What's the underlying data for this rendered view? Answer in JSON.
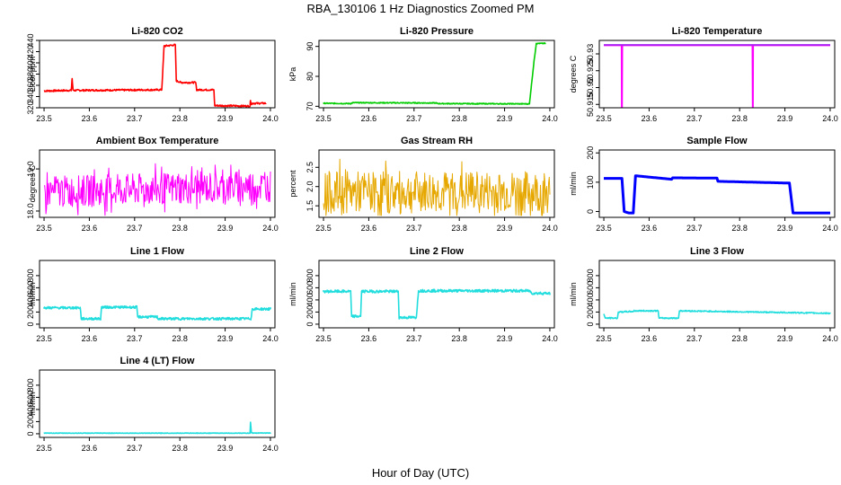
{
  "figure": {
    "title": "RBA_130106  1 Hz Diagnostics Zoomed PM",
    "xlabel": "Hour of Day (UTC)"
  },
  "chart_data": [
    {
      "type": "line",
      "title": "Li-820 CO2",
      "ylabel": "Licor ppm",
      "xlim": [
        23.49,
        24.01
      ],
      "ylim": [
        320,
        440
      ],
      "yticks": [
        320,
        340,
        360,
        380,
        400,
        420,
        440
      ],
      "xticks": [
        23.5,
        23.6,
        23.7,
        23.8,
        23.9,
        24.0
      ],
      "series": [
        {
          "color": "#ff0000",
          "style": "noisy",
          "noise": 1.5,
          "x": [
            23.5,
            23.56,
            23.562,
            23.564,
            23.566,
            23.76,
            23.765,
            23.79,
            23.792,
            23.8,
            23.802,
            23.835,
            23.837,
            23.875,
            23.877,
            23.955,
            23.956,
            23.958,
            23.96,
            23.99
          ],
          "y": [
            350,
            351,
            372,
            352,
            351,
            352,
            430,
            432,
            368,
            366,
            365,
            365,
            352,
            352,
            324,
            323,
            333,
            326,
            328,
            328
          ]
        }
      ]
    },
    {
      "type": "line",
      "title": "Li-820 Pressure",
      "ylabel": "kPa",
      "xlim": [
        23.49,
        24.01
      ],
      "ylim": [
        69.5,
        92
      ],
      "yticks": [
        70,
        80,
        90
      ],
      "xticks": [
        23.5,
        23.6,
        23.7,
        23.8,
        23.9,
        24.0
      ],
      "series": [
        {
          "color": "#00cc00",
          "style": "noisy",
          "noise": 0.15,
          "x": [
            23.5,
            23.56,
            23.565,
            23.75,
            23.752,
            23.955,
            23.96,
            23.965,
            23.97,
            23.99
          ],
          "y": [
            71,
            70.9,
            71.2,
            71.1,
            70.9,
            70.8,
            78,
            85,
            91,
            91
          ]
        }
      ]
    },
    {
      "type": "line",
      "title": "Li-820 Temperature",
      "ylabel": "degrees C",
      "xlim": [
        23.49,
        24.01
      ],
      "ylim": [
        50.914,
        50.934
      ],
      "yticks": [
        50.915,
        50.92,
        50.925,
        50.93
      ],
      "xtick_labels": [
        "23.5",
        "23.6",
        "23.7",
        "23.8",
        "23.9",
        "24.0"
      ],
      "xticks": [
        23.5,
        23.6,
        23.7,
        23.8,
        23.9,
        24.0
      ],
      "series": [
        {
          "color": "#ff00ff",
          "style": "plain",
          "x": [
            23.5,
            23.539,
            23.5395,
            23.5405,
            23.541,
            23.828,
            23.8285,
            23.8295,
            23.83,
            24.0
          ],
          "y": [
            50.9325,
            50.9325,
            50.914,
            50.914,
            50.9325,
            50.9325,
            50.914,
            50.914,
            50.9325,
            50.9325
          ]
        },
        {
          "color": "#a020f0",
          "style": "plain",
          "x": [
            23.5,
            24.0
          ],
          "y": [
            50.9327,
            50.9327
          ]
        }
      ]
    },
    {
      "type": "line",
      "title": "Ambient Box Temperature",
      "ylabel": "degrees C",
      "xlim": [
        23.49,
        24.01
      ],
      "ylim": [
        17.85,
        19.45
      ],
      "yticks": [
        18.0,
        19.0
      ],
      "ytick_labels": [
        "18.0",
        "19.0"
      ],
      "xticks": [
        23.5,
        23.6,
        23.7,
        23.8,
        23.9,
        24.0
      ],
      "series": [
        {
          "color": "#ff00ff",
          "style": "jagged",
          "x": [
            23.5,
            24.0
          ],
          "y": [
            18.45,
            18.6
          ],
          "amplitude": 0.38,
          "lo": 17.9,
          "hi": 19.35
        }
      ]
    },
    {
      "type": "line",
      "title": "Gas Stream RH",
      "ylabel": "percent",
      "xlim": [
        23.49,
        24.01
      ],
      "ylim": [
        1.2,
        2.95
      ],
      "yticks": [
        1.5,
        2.0,
        2.5
      ],
      "ytick_labels": [
        "1.5",
        "2.0",
        "2.5"
      ],
      "xticks": [
        23.5,
        23.6,
        23.7,
        23.8,
        23.9,
        24.0
      ],
      "series": [
        {
          "color": "#e6a800",
          "style": "jagged",
          "x": [
            23.5,
            24.0
          ],
          "y": [
            1.85,
            1.85
          ],
          "amplitude": 0.55,
          "lo": 1.25,
          "hi": 2.85
        }
      ]
    },
    {
      "type": "line",
      "title": "Sample Flow",
      "ylabel": "ml/min",
      "xlim": [
        23.49,
        24.01
      ],
      "ylim": [
        -20,
        210
      ],
      "yticks": [
        0,
        100,
        200
      ],
      "xticks": [
        23.5,
        23.6,
        23.7,
        23.8,
        23.9,
        24.0
      ],
      "series": [
        {
          "color": "#0000ff",
          "style": "thick",
          "x": [
            23.5,
            23.54,
            23.545,
            23.555,
            23.565,
            23.57,
            23.65,
            23.652,
            23.75,
            23.752,
            23.91,
            23.918,
            24.0
          ],
          "y": [
            113,
            113,
            0,
            -5,
            -5,
            122,
            110,
            115,
            114,
            103,
            97,
            -5,
            -5
          ]
        }
      ]
    },
    {
      "type": "line",
      "title": "Line 1 Flow",
      "ylabel": "ml/min",
      "xlim": [
        23.49,
        24.01
      ],
      "ylim": [
        -60,
        1050
      ],
      "yticks": [
        0,
        200,
        400,
        600,
        800
      ],
      "xticks": [
        23.5,
        23.6,
        23.7,
        23.8,
        23.9,
        24.0
      ],
      "series": [
        {
          "color": "#22dddd",
          "style": "noisy",
          "noise": 20,
          "x": [
            23.5,
            23.58,
            23.582,
            23.625,
            23.627,
            23.705,
            23.707,
            23.75,
            23.752,
            23.957,
            23.96,
            24.0
          ],
          "y": [
            270,
            270,
            90,
            90,
            280,
            280,
            120,
            120,
            90,
            90,
            250,
            250
          ]
        }
      ]
    },
    {
      "type": "line",
      "title": "Line 2 Flow",
      "ylabel": "ml/min",
      "xlim": [
        23.49,
        24.01
      ],
      "ylim": [
        -60,
        1050
      ],
      "yticks": [
        0,
        200,
        400,
        600,
        800
      ],
      "xticks": [
        23.5,
        23.6,
        23.7,
        23.8,
        23.9,
        24.0
      ],
      "series": [
        {
          "color": "#22dddd",
          "style": "noisy",
          "noise": 22,
          "x": [
            23.5,
            23.56,
            23.562,
            23.582,
            23.584,
            23.665,
            23.667,
            23.705,
            23.71,
            23.955,
            23.96,
            24.0
          ],
          "y": [
            540,
            540,
            130,
            130,
            540,
            540,
            110,
            110,
            550,
            550,
            510,
            510
          ]
        }
      ]
    },
    {
      "type": "line",
      "title": "Line 3 Flow",
      "ylabel": "ml/min",
      "xlim": [
        23.49,
        24.01
      ],
      "ylim": [
        -60,
        1050
      ],
      "yticks": [
        0,
        200,
        400,
        600,
        800
      ],
      "xticks": [
        23.5,
        23.6,
        23.7,
        23.8,
        23.9,
        24.0
      ],
      "series": [
        {
          "color": "#22dddd",
          "style": "noisy",
          "noise": 10,
          "x": [
            23.5,
            23.503,
            23.53,
            23.532,
            23.565,
            23.567,
            23.62,
            23.622,
            23.665,
            23.667,
            24.0
          ],
          "y": [
            170,
            100,
            100,
            200,
            210,
            220,
            220,
            100,
            100,
            220,
            180
          ]
        }
      ]
    },
    {
      "type": "line",
      "title": "Line 4 (LT) Flow",
      "ylabel": "ml/min",
      "xlim": [
        23.49,
        24.01
      ],
      "ylim": [
        -60,
        1050
      ],
      "yticks": [
        0,
        200,
        400,
        600,
        800
      ],
      "xticks": [
        23.5,
        23.6,
        23.7,
        23.8,
        23.9,
        24.0
      ],
      "series": [
        {
          "color": "#22dddd",
          "style": "noisy",
          "noise": 4,
          "x": [
            23.5,
            23.955,
            23.956,
            23.958,
            23.96,
            24.0
          ],
          "y": [
            10,
            10,
            190,
            20,
            12,
            12
          ]
        }
      ]
    }
  ]
}
